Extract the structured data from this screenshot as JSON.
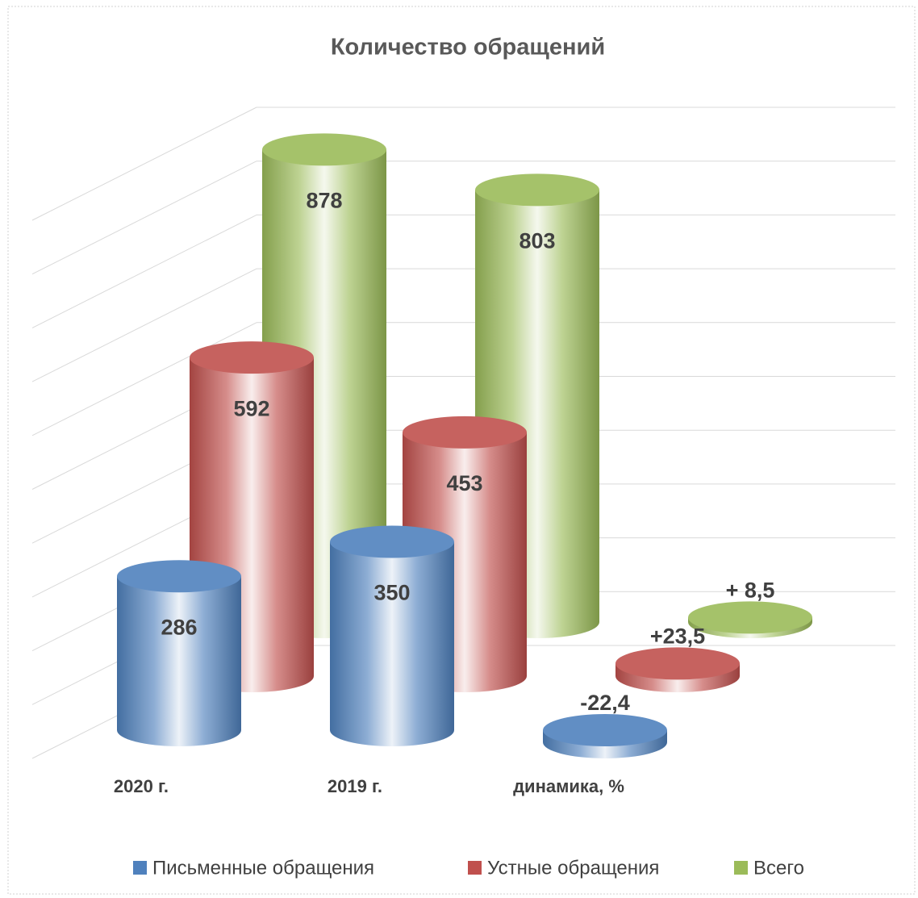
{
  "chart_data": {
    "type": "bar3d",
    "title": "Количество обращений",
    "categories": [
      "2020 г.",
      "2019 г.",
      "динамика, %"
    ],
    "series": [
      {
        "name": "Письменные обращения",
        "color": "#4f81bd",
        "values": [
          286,
          350,
          -22.4
        ],
        "value_labels": [
          "286",
          "350",
          "-22,4"
        ]
      },
      {
        "name": "Устные обращения",
        "color": "#c0504d",
        "values": [
          592,
          453,
          23.5
        ],
        "value_labels": [
          "592",
          "453",
          "+23,5"
        ]
      },
      {
        "name": "Всего",
        "color": "#9bbb59",
        "values": [
          878,
          803,
          8.5
        ],
        "value_labels": [
          "878",
          "803",
          "+ 8,5"
        ]
      }
    ],
    "ylim": [
      0,
      1000
    ],
    "yticks": [
      0,
      100,
      200,
      300,
      400,
      500,
      600,
      700,
      800,
      900,
      1000
    ],
    "grid": true,
    "legend": "bottom"
  }
}
